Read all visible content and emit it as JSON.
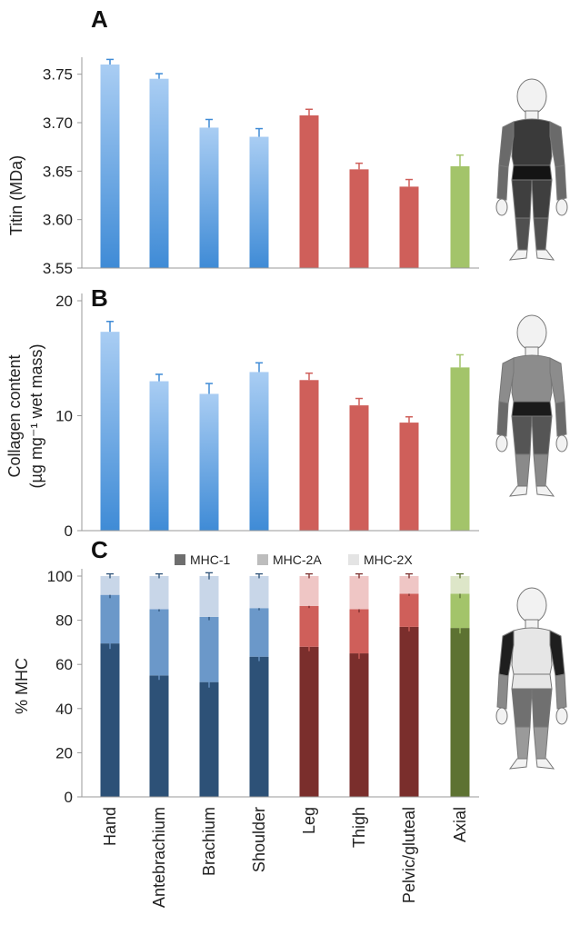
{
  "categories": [
    "Hand",
    "Antebrachium",
    "Brachium",
    "Shoulder",
    "Leg",
    "Thigh",
    "Pelvic/gluteal",
    "Axial"
  ],
  "chart_data": [
    {
      "type": "bar",
      "panel": "A",
      "ylabel": "Titin (MDa)",
      "ylim": [
        3.55,
        3.76
      ],
      "yticks": [
        "3.55",
        "3.60",
        "3.65",
        "3.70",
        "3.75"
      ],
      "categories": [
        "Hand",
        "Antebrachium",
        "Brachium",
        "Shoulder",
        "Leg",
        "Thigh",
        "Pelvic/gluteal",
        "Axial"
      ],
      "values": [
        3.75,
        3.736,
        3.688,
        3.679,
        3.7,
        3.647,
        3.63,
        3.65
      ],
      "errors": [
        0.005,
        0.005,
        0.008,
        0.008,
        0.006,
        0.006,
        0.007,
        0.011
      ]
    },
    {
      "type": "bar",
      "panel": "B",
      "ylabel": "Collagen content",
      "ylabel2": "(µg mg⁻¹ wet mass)",
      "ylim": [
        0,
        20
      ],
      "yticks": [
        "0",
        "10",
        "20"
      ],
      "categories": [
        "Hand",
        "Antebrachium",
        "Brachium",
        "Shoulder",
        "Leg",
        "Thigh",
        "Pelvic/gluteal",
        "Axial"
      ],
      "values": [
        17.3,
        13.0,
        11.9,
        13.8,
        13.1,
        10.9,
        9.4,
        14.2
      ],
      "errors": [
        0.9,
        0.6,
        0.9,
        0.8,
        0.6,
        0.6,
        0.5,
        1.1
      ]
    },
    {
      "type": "stacked-bar",
      "panel": "C",
      "ylabel": "% MHC",
      "ylim": [
        0,
        100
      ],
      "yticks": [
        "0",
        "20",
        "40",
        "60",
        "80",
        "100"
      ],
      "categories": [
        "Hand",
        "Antebrachium",
        "Brachium",
        "Shoulder",
        "Leg",
        "Thigh",
        "Pelvic/gluteal",
        "Axial"
      ],
      "legend_position": "top",
      "series": [
        {
          "name": "MHC-1",
          "values": [
            69.5,
            55.0,
            52.0,
            63.5,
            68.0,
            65.0,
            77.0,
            76.5
          ],
          "errors": [
            2.5,
            2.0,
            2.5,
            2.0,
            2.0,
            2.5,
            2.0,
            2.5
          ]
        },
        {
          "name": "MHC-2A",
          "values": [
            22.0,
            30.0,
            29.5,
            22.0,
            18.5,
            20.0,
            15.0,
            15.5
          ],
          "errors": [
            1.5,
            1.0,
            1.5,
            1.0,
            1.0,
            1.5,
            1.0,
            2.0
          ]
        },
        {
          "name": "MHC-2X",
          "values": [
            8.5,
            15.0,
            18.5,
            14.5,
            13.5,
            15.0,
            8.0,
            8.0
          ],
          "errors": [
            1.0,
            1.0,
            1.5,
            1.0,
            1.0,
            1.0,
            1.0,
            1.0
          ]
        }
      ]
    }
  ],
  "panel_labels": [
    "A",
    "B",
    "C"
  ],
  "legend": [
    "MHC-1",
    "MHC-2A",
    "MHC-2X"
  ],
  "colors": {
    "arm_top": "#a9cdf3",
    "arm_bottom": "#3f8bd6",
    "leg": "#cf5f5a",
    "axial": "#a3c46a",
    "error_blue": "#3f8bd6",
    "error_red": "#cf5f5a",
    "error_green": "#a3c46a",
    "c_arm": [
      "#2d5177",
      "#6b98c9",
      "#c8d6e8"
    ],
    "c_leg": [
      "#7a2e2c",
      "#cf5f5a",
      "#efc6c5"
    ],
    "c_axial": [
      "#5d7232",
      "#a3c46a",
      "#dde6c8"
    ],
    "legend_swatches": [
      "#6e6e6e",
      "#bdbdbd",
      "#e4e4e4"
    ]
  },
  "body_figures": [
    {
      "name": "body-figure-a-icon",
      "highlight": "arm-leg-axial"
    },
    {
      "name": "body-figure-b-icon",
      "highlight": "trunk-emphasis"
    },
    {
      "name": "body-figure-c-icon",
      "highlight": "axial-trunk"
    }
  ]
}
